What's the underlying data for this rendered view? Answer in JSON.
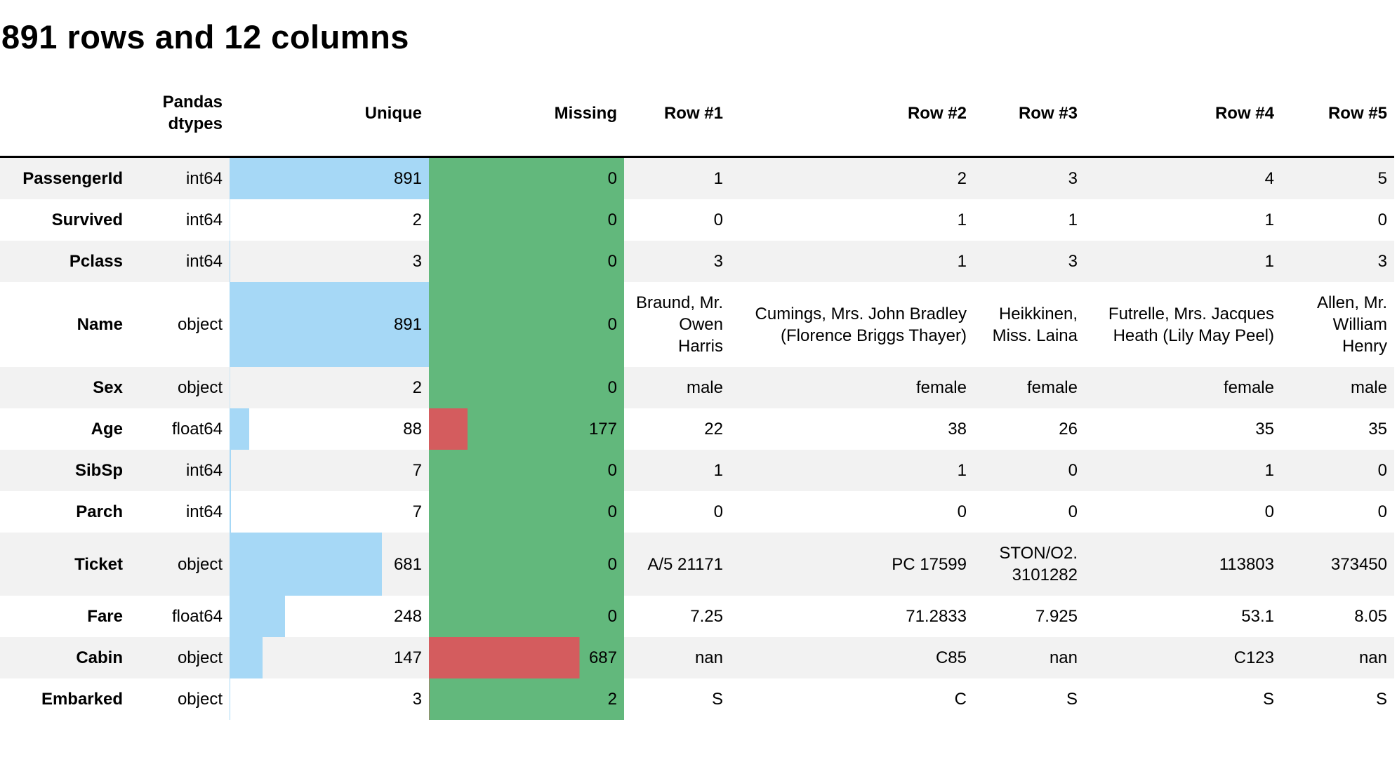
{
  "title": "891 rows and 12 columns",
  "colors": {
    "unique_bar_blue": "#a6d8f6",
    "missing_fill_green": "#62b87c",
    "missing_bar_red": "#d45c5e",
    "row_stripe_gray": "#f2f2f2",
    "header_rule_black": "#000000"
  },
  "chart_data": {
    "type": "table",
    "title": "891 rows and 12 columns",
    "total_rows": 891,
    "total_columns": 12,
    "legend_position": "none",
    "grid": "off",
    "headers": {
      "field": "",
      "dtype": "Pandas dtypes",
      "unique": "Unique",
      "missing": "Missing",
      "row_headers": [
        "Row #1",
        "Row #2",
        "Row #3",
        "Row #4",
        "Row #5"
      ]
    },
    "bar_scale_max": 891,
    "fields": [
      {
        "name": "PassengerId",
        "dtype": "int64",
        "unique": 891,
        "missing": 0,
        "values": [
          "1",
          "2",
          "3",
          "4",
          "5"
        ]
      },
      {
        "name": "Survived",
        "dtype": "int64",
        "unique": 2,
        "missing": 0,
        "values": [
          "0",
          "1",
          "1",
          "1",
          "0"
        ]
      },
      {
        "name": "Pclass",
        "dtype": "int64",
        "unique": 3,
        "missing": 0,
        "values": [
          "3",
          "1",
          "3",
          "1",
          "3"
        ]
      },
      {
        "name": "Name",
        "dtype": "object",
        "unique": 891,
        "missing": 0,
        "values": [
          "Braund, Mr. Owen Harris",
          "Cumings, Mrs. John Bradley (Florence Briggs Thayer)",
          "Heikkinen, Miss. Laina",
          "Futrelle, Mrs. Jacques Heath (Lily May Peel)",
          "Allen, Mr. William Henry"
        ]
      },
      {
        "name": "Sex",
        "dtype": "object",
        "unique": 2,
        "missing": 0,
        "values": [
          "male",
          "female",
          "female",
          "female",
          "male"
        ]
      },
      {
        "name": "Age",
        "dtype": "float64",
        "unique": 88,
        "missing": 177,
        "values": [
          "22",
          "38",
          "26",
          "35",
          "35"
        ]
      },
      {
        "name": "SibSp",
        "dtype": "int64",
        "unique": 7,
        "missing": 0,
        "values": [
          "1",
          "1",
          "0",
          "1",
          "0"
        ]
      },
      {
        "name": "Parch",
        "dtype": "int64",
        "unique": 7,
        "missing": 0,
        "values": [
          "0",
          "0",
          "0",
          "0",
          "0"
        ]
      },
      {
        "name": "Ticket",
        "dtype": "object",
        "unique": 681,
        "missing": 0,
        "values": [
          "A/5 21171",
          "PC 17599",
          "STON/O2. 3101282",
          "113803",
          "373450"
        ]
      },
      {
        "name": "Fare",
        "dtype": "float64",
        "unique": 248,
        "missing": 0,
        "values": [
          "7.25",
          "71.2833",
          "7.925",
          "53.1",
          "8.05"
        ]
      },
      {
        "name": "Cabin",
        "dtype": "object",
        "unique": 147,
        "missing": 687,
        "values": [
          "nan",
          "C85",
          "nan",
          "C123",
          "nan"
        ]
      },
      {
        "name": "Embarked",
        "dtype": "object",
        "unique": 3,
        "missing": 2,
        "values": [
          "S",
          "C",
          "S",
          "S",
          "S"
        ]
      }
    ]
  }
}
